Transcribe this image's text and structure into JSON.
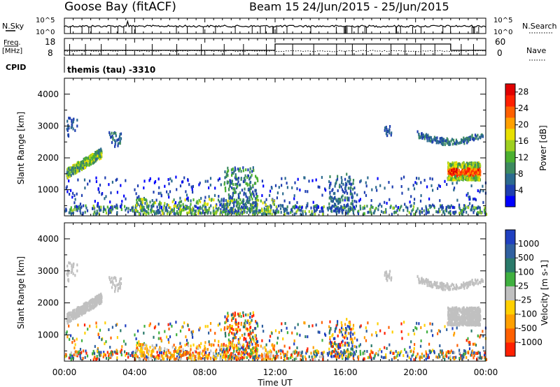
{
  "header": {
    "station": "Goose Bay (fitACF)",
    "beam": "Beam 15",
    "date_range": "24/Jun/2015 - 25/Jun/2015"
  },
  "top_panel": {
    "left_label": "N.Sky",
    "right_label": "N.Search",
    "y_ticks_left": [
      "10^5",
      "10^0"
    ],
    "y_ticks_right": [
      "10^5",
      "10^0"
    ]
  },
  "freq_panel": {
    "left_label_1": "Freq.",
    "left_label_2": "[MHz]",
    "right_label": "Nave",
    "y_ticks_left": [
      "18",
      "8"
    ],
    "y_ticks_right": [
      "60",
      "0"
    ]
  },
  "cpid": {
    "label": "CPID",
    "mode_text": "themis (tau) -3310"
  },
  "time_axis": {
    "xlabel": "Time UT",
    "ticks": [
      "00:00",
      "04:00",
      "08:00",
      "12:00",
      "16:00",
      "20:00",
      "00:00"
    ]
  },
  "chart_data": [
    {
      "type": "heatmap",
      "name": "power",
      "ylabel": "Slant Range [km]",
      "x_range_hours": [
        0,
        24
      ],
      "ylim": [
        180,
        4500
      ],
      "y_ticks": [
        "1000",
        "2000",
        "3000",
        "4000"
      ],
      "colorbar": {
        "label": "Power [dB]",
        "ticks": [
          "4",
          "8",
          "12",
          "16",
          "20",
          "24",
          "28"
        ],
        "range": [
          0,
          30
        ],
        "colors": [
          "#0000ff",
          "#1f3fb0",
          "#2c6a8f",
          "#3d8a60",
          "#4cb030",
          "#9fd020",
          "#e8e000",
          "#ffa000",
          "#ff6000",
          "#ff2000",
          "#e00000"
        ]
      }
    },
    {
      "type": "heatmap",
      "name": "velocity",
      "ylabel": "Slant Range [km]",
      "x_range_hours": [
        0,
        24
      ],
      "ylim": [
        180,
        4500
      ],
      "y_ticks": [
        "1000",
        "2000",
        "3000",
        "4000"
      ],
      "colorbar": {
        "label": "Velocity [m s-1]",
        "ticks": [
          "1000",
          "500",
          "100",
          "25",
          "-25",
          "-100",
          "-500",
          "-1000"
        ],
        "colors": [
          "#2040c0",
          "#3060a0",
          "#2a7a6a",
          "#40b040",
          "#c0c0c0",
          "#ffd000",
          "#ffa000",
          "#ff6000",
          "#ff2000"
        ]
      }
    }
  ]
}
